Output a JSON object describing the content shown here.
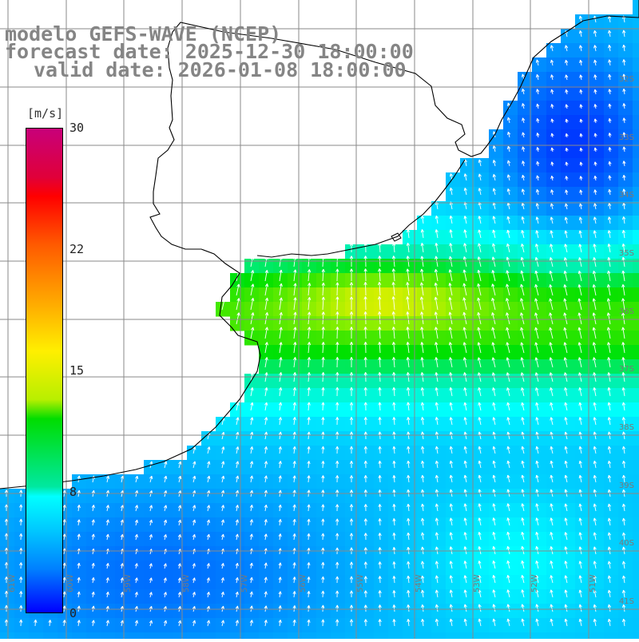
{
  "title": {
    "line1": "modelo GEFS-WAVE (NCEP)",
    "line2": "forecast date: 2025-12-30 18:00:00",
    "line3": "valid date: 2026-01-08 18:00:00"
  },
  "colorbar": {
    "unit_label": "[m/s]",
    "ticks": [
      "30",
      "22",
      "15",
      "8",
      "0"
    ],
    "min": 0,
    "max": 30
  },
  "grid": {
    "lat_labels": [
      "32S",
      "33S",
      "34S",
      "35S",
      "36S",
      "37S",
      "38S",
      "39S",
      "40S",
      "41S"
    ],
    "lon_labels": [
      "61W",
      "60W",
      "59W",
      "58W",
      "57W",
      "56W",
      "55W",
      "54W",
      "53W",
      "52W",
      "51W"
    ]
  },
  "colors": {
    "land": "#ffffff",
    "coast": "#000000",
    "grid": "#8a8a8a",
    "title": "#858585"
  }
}
